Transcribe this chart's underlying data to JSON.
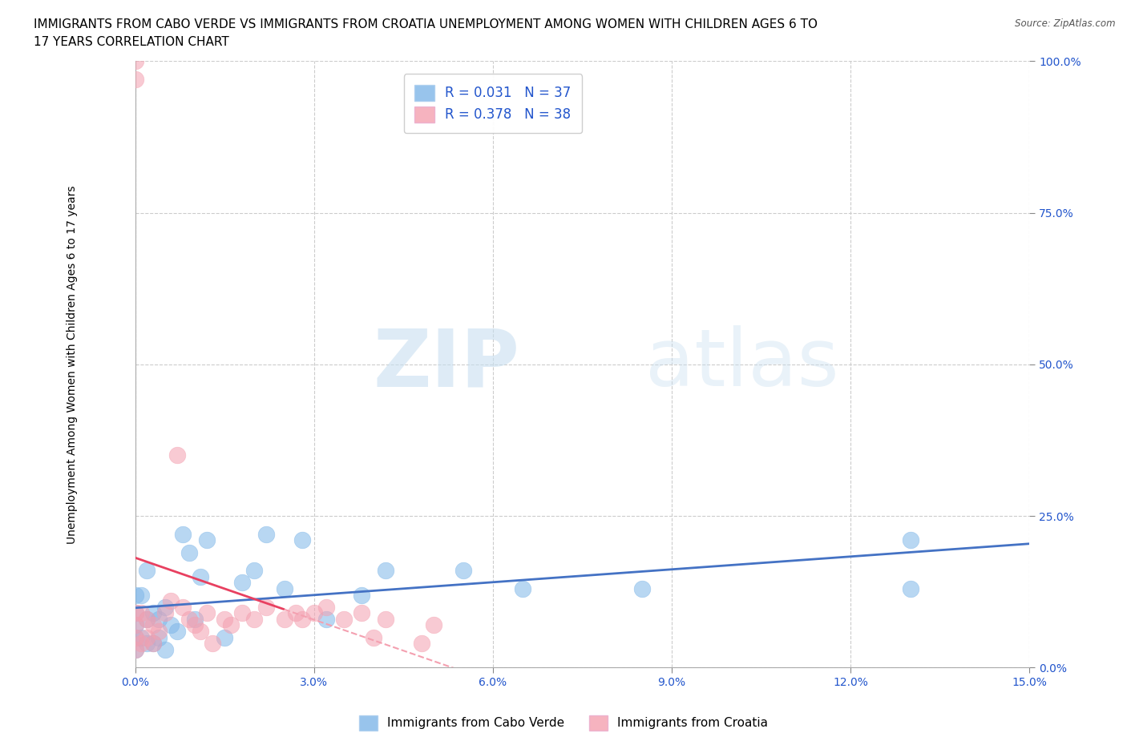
{
  "title_line1": "IMMIGRANTS FROM CABO VERDE VS IMMIGRANTS FROM CROATIA UNEMPLOYMENT AMONG WOMEN WITH CHILDREN AGES 6 TO",
  "title_line2": "17 YEARS CORRELATION CHART",
  "source": "Source: ZipAtlas.com",
  "ylabel": "Unemployment Among Women with Children Ages 6 to 17 years",
  "xlim": [
    0.0,
    0.15
  ],
  "ylim": [
    0.0,
    1.0
  ],
  "xticks": [
    0.0,
    0.03,
    0.06,
    0.09,
    0.12,
    0.15
  ],
  "xtick_labels": [
    "0.0%",
    "3.0%",
    "6.0%",
    "9.0%",
    "12.0%",
    "15.0%"
  ],
  "yticks": [
    0.0,
    0.25,
    0.5,
    0.75,
    1.0
  ],
  "ytick_labels": [
    "0.0%",
    "25.0%",
    "50.0%",
    "75.0%",
    "100.0%"
  ],
  "cabo_verde_color": "#7EB6E8",
  "croatia_color": "#F4A0B0",
  "cabo_verde_R": 0.031,
  "cabo_verde_N": 37,
  "croatia_R": 0.378,
  "croatia_N": 38,
  "legend_label_cabo": "Immigrants from Cabo Verde",
  "legend_label_croatia": "Immigrants from Croatia",
  "watermark_zip": "ZIP",
  "watermark_atlas": "atlas",
  "cabo_verde_x": [
    0.0,
    0.0,
    0.0,
    0.0,
    0.0,
    0.001,
    0.001,
    0.002,
    0.002,
    0.002,
    0.003,
    0.003,
    0.004,
    0.004,
    0.005,
    0.005,
    0.006,
    0.007,
    0.008,
    0.009,
    0.01,
    0.011,
    0.012,
    0.015,
    0.018,
    0.02,
    0.022,
    0.025,
    0.028,
    0.032,
    0.038,
    0.042,
    0.055,
    0.065,
    0.085,
    0.13,
    0.13
  ],
  "cabo_verde_y": [
    0.03,
    0.05,
    0.07,
    0.09,
    0.12,
    0.05,
    0.12,
    0.04,
    0.08,
    0.16,
    0.04,
    0.09,
    0.05,
    0.08,
    0.03,
    0.1,
    0.07,
    0.06,
    0.22,
    0.19,
    0.08,
    0.15,
    0.21,
    0.05,
    0.14,
    0.16,
    0.22,
    0.13,
    0.21,
    0.08,
    0.12,
    0.16,
    0.16,
    0.13,
    0.13,
    0.13,
    0.21
  ],
  "croatia_x": [
    0.0,
    0.0,
    0.0,
    0.0,
    0.0,
    0.0,
    0.001,
    0.001,
    0.002,
    0.002,
    0.003,
    0.003,
    0.004,
    0.005,
    0.006,
    0.007,
    0.008,
    0.009,
    0.01,
    0.011,
    0.012,
    0.013,
    0.015,
    0.016,
    0.018,
    0.02,
    0.022,
    0.025,
    0.027,
    0.028,
    0.03,
    0.032,
    0.035,
    0.038,
    0.04,
    0.042,
    0.048,
    0.05
  ],
  "croatia_y": [
    0.97,
    1.0,
    0.03,
    0.05,
    0.07,
    0.09,
    0.04,
    0.09,
    0.05,
    0.08,
    0.04,
    0.07,
    0.06,
    0.09,
    0.11,
    0.35,
    0.1,
    0.08,
    0.07,
    0.06,
    0.09,
    0.04,
    0.08,
    0.07,
    0.09,
    0.08,
    0.1,
    0.08,
    0.09,
    0.08,
    0.09,
    0.1,
    0.08,
    0.09,
    0.05,
    0.08,
    0.04,
    0.07
  ],
  "background_color": "#FFFFFF",
  "grid_color": "#CCCCCC",
  "trendline_cabo_color": "#4472C4",
  "trendline_croatia_solid_color": "#E84060",
  "trendline_croatia_dash_color": "#F4A0B0",
  "legend_text_color": "#2255CC",
  "title_fontsize": 11,
  "axis_label_fontsize": 10,
  "tick_fontsize": 10,
  "legend_fontsize": 12
}
